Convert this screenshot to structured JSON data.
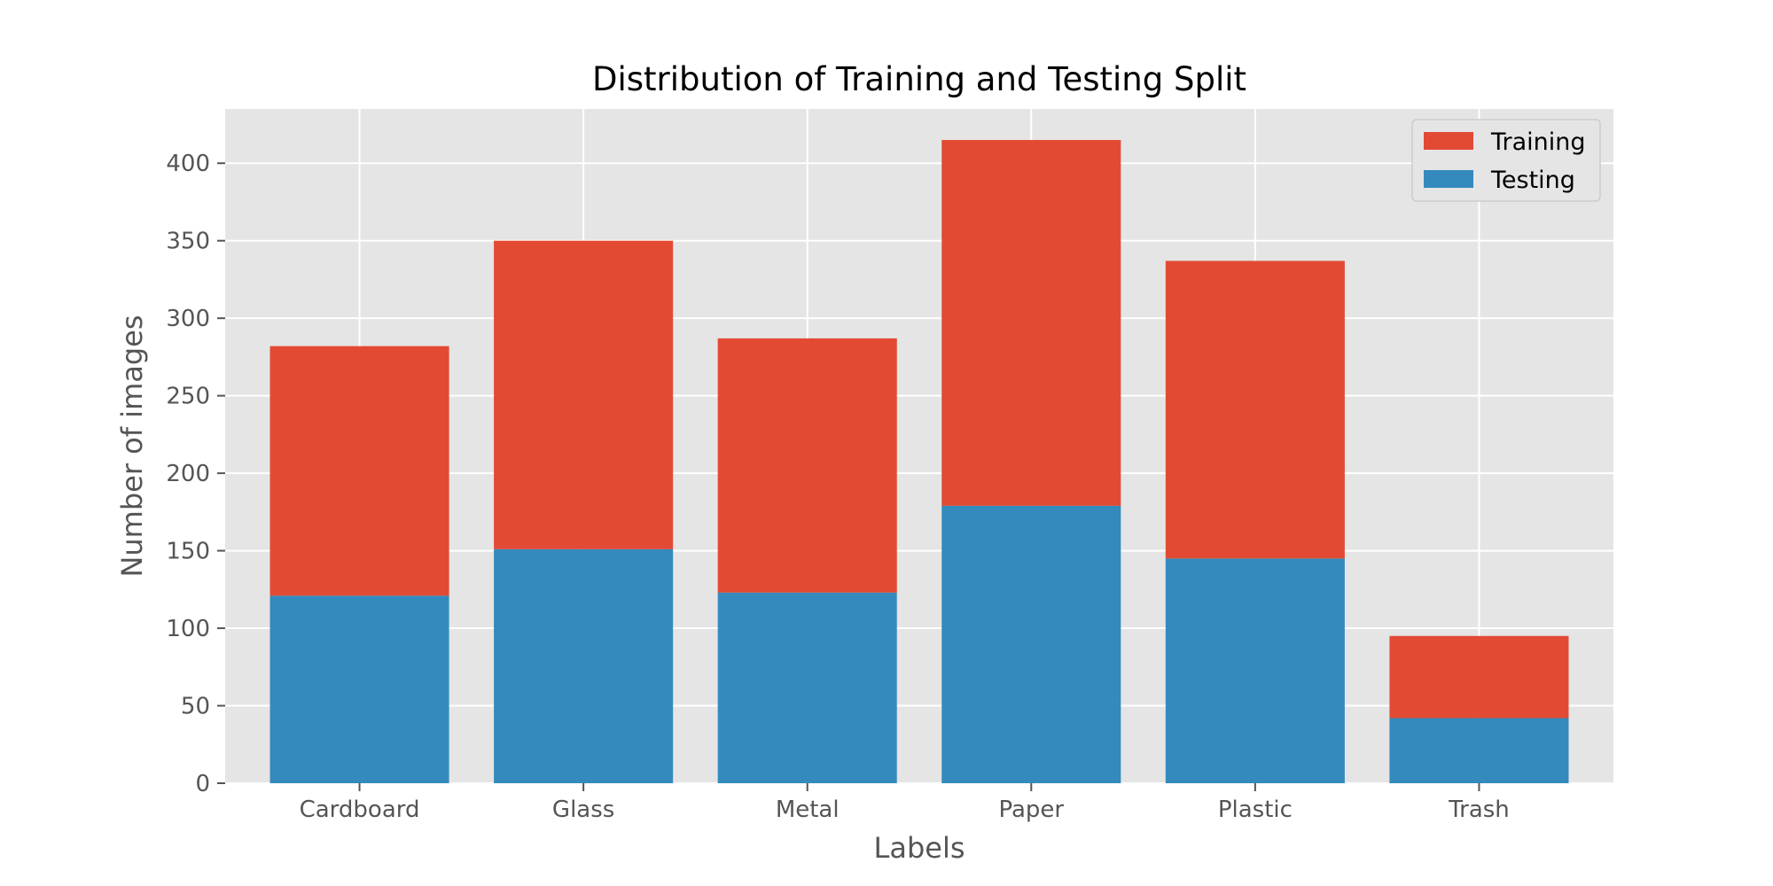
{
  "chart_data": {
    "type": "bar",
    "stacked": true,
    "title": "Distribution of Training and Testing Split",
    "xlabel": "Labels",
    "ylabel": "Number of images",
    "categories": [
      "Cardboard",
      "Glass",
      "Metal",
      "Paper",
      "Plastic",
      "Trash"
    ],
    "series": [
      {
        "name": "Testing",
        "color": "#348ABD",
        "values": [
          121,
          151,
          123,
          179,
          145,
          42
        ],
        "stack_order": 0
      },
      {
        "name": "Training",
        "color": "#E24A33",
        "values": [
          161,
          199,
          164,
          236,
          192,
          53
        ],
        "stack_order": 1
      }
    ],
    "stack_totals": [
      282,
      350,
      287,
      415,
      337,
      95
    ],
    "ylim": [
      0,
      435
    ],
    "yticks": [
      0,
      50,
      100,
      150,
      200,
      250,
      300,
      350,
      400
    ],
    "grid": true,
    "legend": {
      "position": "top-right",
      "entries": [
        "Training",
        "Testing"
      ]
    },
    "style": {
      "plot_background": "#E5E5E5",
      "grid_color": "#FFFFFF"
    }
  }
}
